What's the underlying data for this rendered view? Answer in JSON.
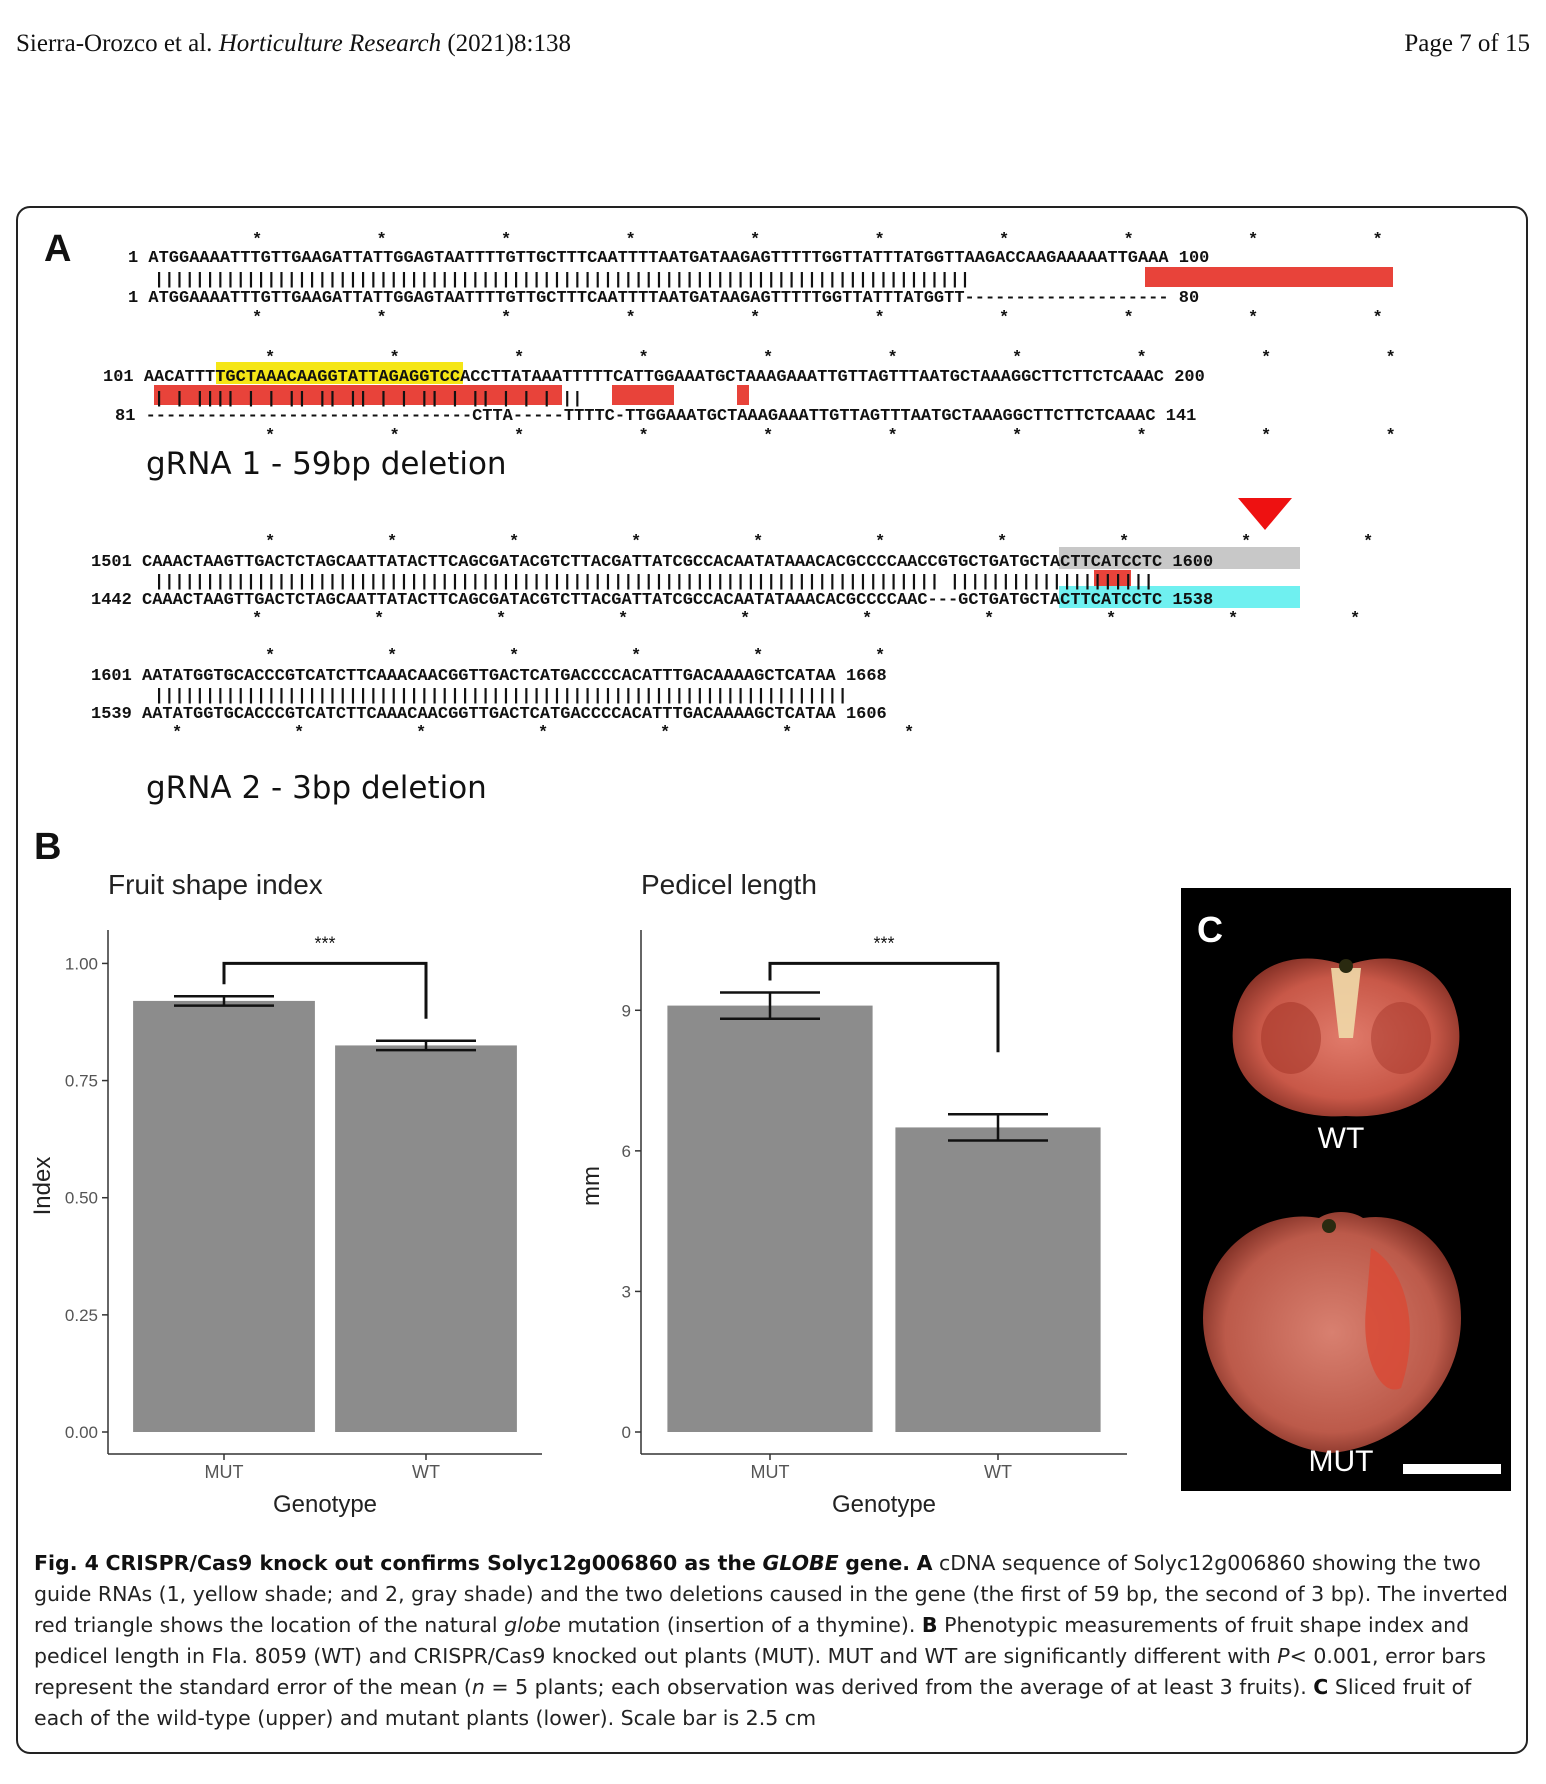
{
  "header": {
    "authors": "Sierra-Orozco et al.",
    "journal": "Horticulture Research",
    "citation": "(2021)8:138",
    "page": "Page 7 of 15"
  },
  "panel_labels": {
    "a": "A",
    "b": "B",
    "c": "C"
  },
  "alignment1": {
    "top1": {
      "start": "1",
      "seq": "ATGGAAAATTTGTTGAAGATTATTGGAGTAATTTTGTTGCTTTCAATTTTAATGATAAGAGTTTTTGGTTATTTATGGTTAAGACCAAGAAAAATTGAAA",
      "end": "100"
    },
    "bottom1": {
      "start": "1",
      "seq": "ATGGAAAATTTGTTGAAGATTATTGGAGTAATTTTGTTGCTTTCAATTTTAATGATAAGAGTTTTTGGTTATTTATGGTT--------------------",
      "end": "80"
    },
    "top2": {
      "start": "101",
      "seq": "AACATTTTGCTAAACAAGGTATTAGAGGTCCACCTTATAAATTTTTCATTGGAAATGCTAAAGAAATTGTTAGTTTAATGCTAAAGGCTTCTTCTCAAAC",
      "end": "200"
    },
    "bottom2": {
      "start": "81",
      "seq": "--------------------------------CTTA-----TTTTC-TTGGAAATGCTAAAGAAATTGTTAGTTTAATGCTAAAGGCTTCTTCTCAAAC",
      "end": "141"
    },
    "label": "gRNA 1 - 59bp deletion"
  },
  "alignment2": {
    "top1": {
      "start": "1501",
      "seq": "CAAACTAAGTTGACTCTAGCAATTATACTTCAGCGATACGTCTTACGATTATCGCCACAATATAAACACGCCCCAACCGTGCTGATGCTACTTCATCCTC",
      "end": "1600"
    },
    "bottom1": {
      "start": "1442",
      "seq": "CAAACTAAGTTGACTCTAGCAATTATACTTCAGCGATACGTCTTACGATTATCGCCACAATATAAACACGCCCCAAC---GCTGATGCTACTTCATCCTC",
      "end": "1538"
    },
    "top2": {
      "start": "1601",
      "seq": "AATATGGTGCACCCGTCATCTTCAAACAACGGTTGACTCATGACCCCACATTTGACAAAAGCTCATAA",
      "end": "1668"
    },
    "bottom2": {
      "start": "1539",
      "seq": "AATATGGTGCACCCGTCATCTTCAAACAACGGTTGACTCATGACCCCACATTTGACAAAAGCTCATAA",
      "end": "1606"
    },
    "label": "gRNA 2 - 3bp deletion"
  },
  "colors": {
    "deletion": "#e8433a",
    "grna1": "#f5e616",
    "grna2": "#c8c8c8",
    "cyan": "#6ff0f0",
    "bar": "#8c8c8c"
  },
  "chart_data": [
    {
      "type": "bar",
      "title": "Fruit shape index",
      "categories": [
        "MUT",
        "WT"
      ],
      "values": [
        0.92,
        0.825
      ],
      "errors": [
        0.01,
        0.01
      ],
      "xlabel": "Genotype",
      "ylabel": "Index",
      "ylim": [
        0,
        1.05
      ],
      "yticks": [
        "0.00",
        "0.25",
        "0.50",
        "0.75",
        "1.00"
      ],
      "significance": "***"
    },
    {
      "type": "bar",
      "title": "Pedicel length",
      "categories": [
        "MUT",
        "WT"
      ],
      "values": [
        9.1,
        6.5
      ],
      "errors": [
        0.28,
        0.28
      ],
      "xlabel": "Genotype",
      "ylabel": "mm",
      "ylim": [
        0,
        10.5
      ],
      "yticks": [
        "0",
        "3",
        "6",
        "9"
      ],
      "significance": "***"
    }
  ],
  "photo": {
    "wt_label": "WT",
    "mut_label": "MUT"
  },
  "caption": {
    "fig": "Fig. 4",
    "title_a": "CRISPR/Cas9 knock out confirms Solyc12g006860 as the",
    "title_gene": "GLOBE",
    "title_b": "gene.",
    "part_a_label": "A",
    "part_a": "cDNA sequence of Solyc12g006860 showing the two guide RNAs (1, yellow shade; and 2, gray shade) and the two deletions caused in the gene (the first of 59 bp, the second of 3 bp). The inverted red triangle shows the location of the natural",
    "globe": "globe",
    "part_a2": "mutation (insertion of a thymine).",
    "part_b_label": "B",
    "part_b": "Phenotypic measurements of fruit shape index and pedicel length in Fla. 8059 (WT) and CRISPR/Cas9 knocked out plants (MUT). MUT and WT are significantly different with",
    "p_italic": "P",
    "p_value": "< 0.001, error bars represent the standard error of the mean (",
    "n_italic": "n",
    "n_value": "= 5 plants; each observation was derived from the average of at least 3 fruits).",
    "part_c_label": "C",
    "part_c": "Sliced fruit of each of the wild-type (upper) and mutant plants (lower). Scale bar is 2.5 cm"
  }
}
